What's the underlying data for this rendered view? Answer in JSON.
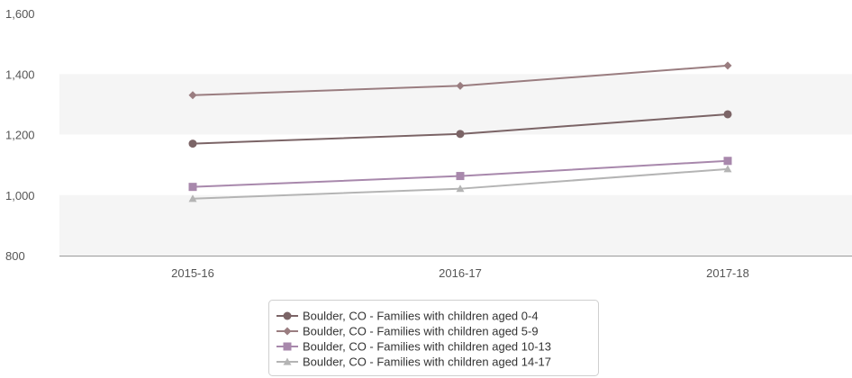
{
  "chart_data": {
    "type": "line",
    "categories": [
      "2015-16",
      "2016-17",
      "2017-18"
    ],
    "ylim": [
      800,
      1600
    ],
    "yticks": [
      800,
      1000,
      1200,
      1400,
      1600
    ],
    "ytick_labels": [
      "800",
      "1,000",
      "1,200",
      "1,400",
      "1,600"
    ],
    "grid": "alternating horizontal bands",
    "legend_position": "bottom-center",
    "series": [
      {
        "name": "Boulder, CO - Families with children aged 0-4",
        "values": [
          1170,
          1202,
          1267
        ],
        "color": "#7b6466",
        "marker": "circle"
      },
      {
        "name": "Boulder, CO - Families with children aged 5-9",
        "values": [
          1330,
          1361,
          1428
        ],
        "color": "#9a7d80",
        "marker": "diamond"
      },
      {
        "name": "Boulder, CO - Families with children aged 10-13",
        "values": [
          1027,
          1063,
          1113
        ],
        "color": "#a888ac",
        "marker": "square"
      },
      {
        "name": "Boulder, CO - Families with children aged 14-17",
        "values": [
          988,
          1021,
          1086
        ],
        "color": "#b4b4b4",
        "marker": "triangle"
      }
    ]
  }
}
